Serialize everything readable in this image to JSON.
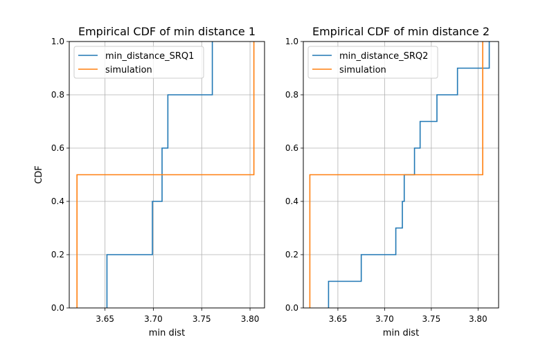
{
  "chart_data": [
    {
      "type": "line",
      "subtype": "empirical-cdf-step",
      "title": "Empirical CDF of min distance 1",
      "xlabel": "min dist",
      "ylabel": "CDF",
      "xlim": [
        3.613,
        3.815
      ],
      "ylim": [
        0.0,
        1.0
      ],
      "xticks": [
        3.65,
        3.7,
        3.75,
        3.8
      ],
      "xtick_labels": [
        "3.65",
        "3.70",
        "3.75",
        "3.80"
      ],
      "yticks": [
        0.0,
        0.2,
        0.4,
        0.6,
        0.8,
        1.0
      ],
      "ytick_labels": [
        "0.0",
        "0.2",
        "0.4",
        "0.6",
        "0.8",
        "1.0"
      ],
      "grid": true,
      "legend": "top-left",
      "series": [
        {
          "name": "min_distance_SRQ1",
          "color": "#1f77b4",
          "x": [
            3.652,
            3.652,
            3.699,
            3.699,
            3.709,
            3.709,
            3.715,
            3.715,
            3.761,
            3.761
          ],
          "y": [
            0.0,
            0.2,
            0.2,
            0.4,
            0.4,
            0.6,
            0.6,
            0.8,
            0.8,
            1.0
          ]
        },
        {
          "name": "simulation",
          "color": "#ff7f0e",
          "x": [
            3.621,
            3.621,
            3.804,
            3.804
          ],
          "y": [
            0.0,
            0.5,
            0.5,
            1.0
          ]
        }
      ]
    },
    {
      "type": "line",
      "subtype": "empirical-cdf-step",
      "title": "Empirical CDF of min distance 2",
      "xlabel": "min dist",
      "ylabel": "",
      "xlim": [
        3.613,
        3.822
      ],
      "ylim": [
        0.0,
        1.0
      ],
      "xticks": [
        3.65,
        3.7,
        3.75,
        3.8
      ],
      "xtick_labels": [
        "3.65",
        "3.70",
        "3.75",
        "3.80"
      ],
      "yticks": [
        0.0,
        0.2,
        0.4,
        0.6,
        0.8,
        1.0
      ],
      "ytick_labels": [
        "0.0",
        "0.2",
        "0.4",
        "0.6",
        "0.8",
        "1.0"
      ],
      "grid": true,
      "legend": "top-left",
      "series": [
        {
          "name": "min_distance_SRQ2",
          "color": "#1f77b4",
          "x": [
            3.64,
            3.64,
            3.675,
            3.675,
            3.712,
            3.712,
            3.719,
            3.719,
            3.721,
            3.721,
            3.732,
            3.732,
            3.738,
            3.738,
            3.756,
            3.756,
            3.778,
            3.778,
            3.812,
            3.812
          ],
          "y": [
            0.0,
            0.1,
            0.1,
            0.2,
            0.2,
            0.3,
            0.3,
            0.4,
            0.4,
            0.5,
            0.5,
            0.6,
            0.6,
            0.7,
            0.7,
            0.8,
            0.8,
            0.9,
            0.9,
            1.0
          ]
        },
        {
          "name": "simulation",
          "color": "#ff7f0e",
          "x": [
            3.62,
            3.62,
            3.805,
            3.805
          ],
          "y": [
            0.0,
            0.5,
            0.5,
            1.0
          ]
        }
      ]
    }
  ]
}
